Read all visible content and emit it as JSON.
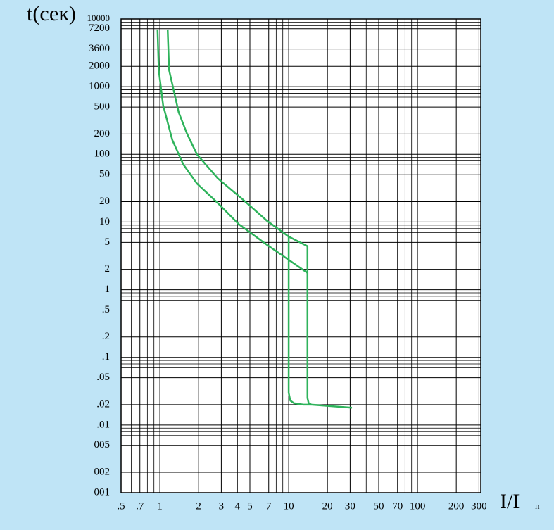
{
  "chart_data": {
    "type": "line",
    "y_label": "t(сек)",
    "x_label": "I/I",
    "x_label_sub": "n",
    "xscale": "log",
    "yscale": "log",
    "xlim": [
      0.5,
      310
    ],
    "ylim": [
      0.001,
      10000
    ],
    "xticks": [
      {
        "value": 0.5,
        "label": ".5"
      },
      {
        "value": 0.7,
        "label": ".7"
      },
      1,
      2,
      3,
      4,
      5,
      7,
      10,
      20,
      30,
      50,
      70,
      100,
      200,
      300
    ],
    "yticks": [
      10000,
      7200,
      3600,
      2000,
      1000,
      500,
      200,
      100,
      50,
      20,
      10,
      5,
      2,
      1,
      {
        "value": 0.5,
        "label": ".5"
      },
      {
        "value": 0.2,
        "label": ".2"
      },
      {
        "value": 0.1,
        "label": ".1"
      },
      {
        "value": 0.05,
        "label": ".05"
      },
      {
        "value": 0.02,
        "label": ".02"
      },
      {
        "value": 0.01,
        "label": ".01"
      },
      {
        "value": 0.005,
        "label": "005"
      },
      {
        "value": 0.002,
        "label": "002"
      },
      {
        "value": 0.001,
        "label": "001"
      }
    ],
    "grid": true,
    "xgrid": [
      0.6,
      0.8,
      0.9,
      6,
      8,
      9,
      40,
      60,
      80,
      90
    ],
    "ygrid": [
      9000,
      8000,
      900,
      800,
      700,
      90,
      80,
      70,
      9,
      8,
      7,
      0.9,
      0.8,
      0.7,
      0.09,
      0.08,
      0.07,
      0.009,
      0.008,
      0.007
    ],
    "series": [
      {
        "color": "#2eb35b",
        "x": [
          0.96,
          0.98,
          1.06,
          1.25,
          1.52,
          1.94,
          2.82,
          4.1,
          6.8,
          14
        ],
        "values": [
          7000,
          1760,
          535,
          163,
          71,
          37,
          19,
          9.3,
          4.6,
          1.77
        ]
      },
      {
        "color": "#2eb35b",
        "x": [
          1.15,
          1.18,
          1.4,
          1.62,
          1.94,
          2.82,
          4.4,
          6.8,
          10,
          14,
          14,
          14.3,
          15,
          31
        ],
        "values": [
          7000,
          1760,
          420,
          205,
          100,
          44,
          21.6,
          10.4,
          6.1,
          4.4,
          0.025,
          0.021,
          0.02,
          0.018
        ]
      },
      {
        "color": "#2eb35b",
        "x": [
          10,
          10,
          10.3,
          11,
          13,
          15
        ],
        "values": [
          6.1,
          0.03,
          0.023,
          0.021,
          0.02,
          0.02
        ]
      }
    ]
  }
}
